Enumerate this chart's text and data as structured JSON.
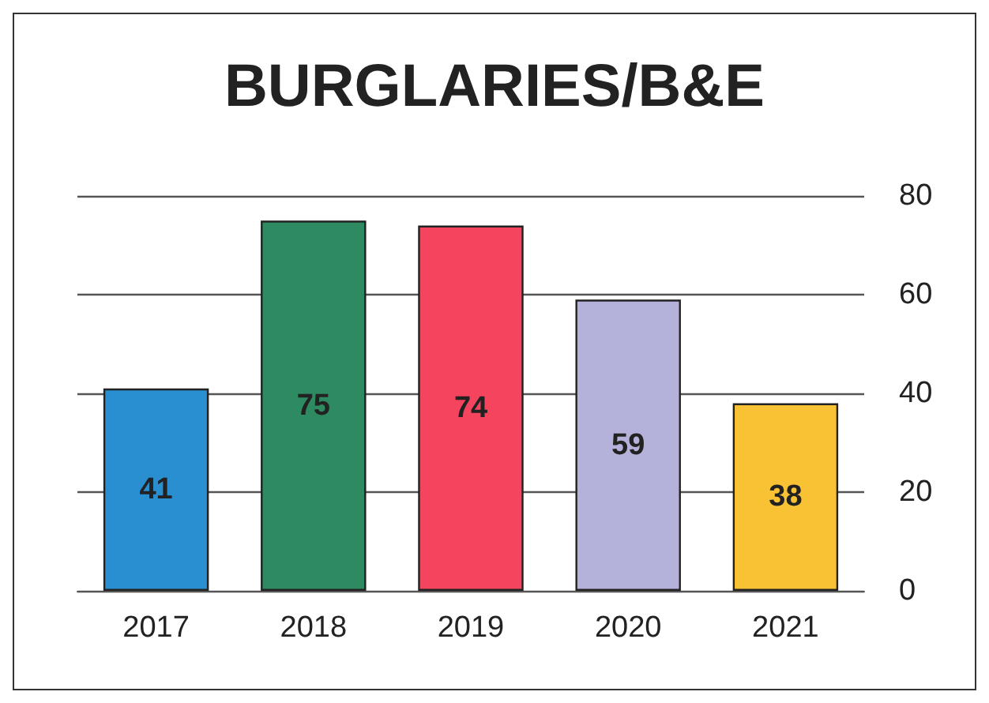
{
  "chart_data": {
    "type": "bar",
    "title": "BURGLARIES/B&E",
    "categories": [
      "2017",
      "2018",
      "2019",
      "2020",
      "2021"
    ],
    "values": [
      41,
      75,
      74,
      59,
      38
    ],
    "colors": [
      "#2a8fd0",
      "#2e8a60",
      "#f5445e",
      "#b4b2da",
      "#f8c234"
    ],
    "ylim": [
      0,
      80
    ],
    "yticks": [
      0,
      20,
      40,
      60,
      80
    ],
    "grid": "y",
    "data_labels": true
  }
}
